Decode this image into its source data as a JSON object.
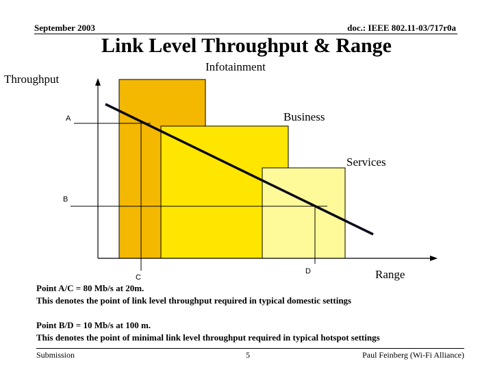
{
  "header": {
    "date": "September 2003",
    "doc_id": "doc.: IEEE 802.11-03/717r0a"
  },
  "title": "Link Level Throughput & Range",
  "diagram": {
    "y_axis_label": "Throughput",
    "x_axis_label": "Range",
    "regions": [
      {
        "label": "Infotainment",
        "color": "#F5B800"
      },
      {
        "label": "Business",
        "color": "#FFE600"
      },
      {
        "label": "Services",
        "color": "#FFFA99"
      }
    ],
    "points": {
      "a": "A",
      "b": "B",
      "c": "C",
      "d": "D"
    },
    "trend_line_color": "#0a0a1a"
  },
  "notes": [
    {
      "heading": "Point A/C = 80 Mb/s at 20m.",
      "text": "This denotes the point of link level throughput required  in typical domestic settings"
    },
    {
      "heading": "Point B/D =  10 Mb/s at 100 m.",
      "text": "This denotes the point of minimal link level throughput required in typical hotspot settings"
    }
  ],
  "footer": {
    "left": "Submission",
    "page": "5",
    "right": "Paul Feinberg (Wi-Fi Alliance)"
  }
}
